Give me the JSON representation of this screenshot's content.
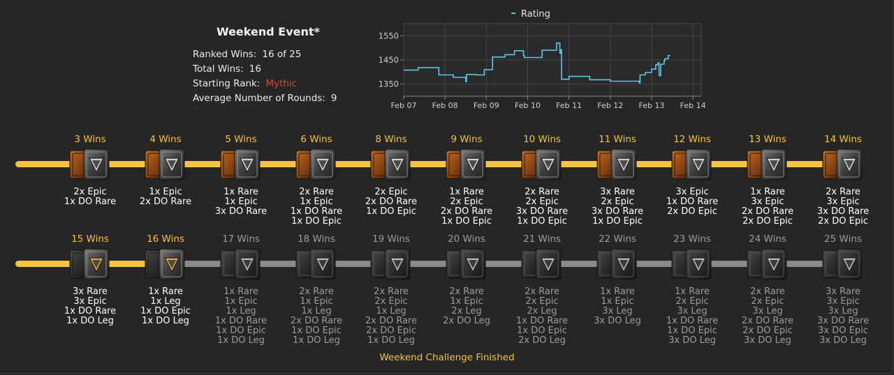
{
  "summary": {
    "title": "Weekend Event*",
    "ranked_wins_label": "Ranked Wins:",
    "ranked_wins_value": "16 of 25",
    "total_wins_label": "Total Wins:",
    "total_wins_value": "16",
    "starting_rank_label": "Starting Rank:",
    "starting_rank_value": "Mythic",
    "avg_rounds_label": "Average Number of Rounds:",
    "avg_rounds_value": "9"
  },
  "colors": {
    "background": "#262626",
    "gold": "#f5c242",
    "track_done": "#f5c242",
    "track_todo": "#8a8a8a",
    "rank_mythic": "#d0483a",
    "chart_line": "#5bc8e6"
  },
  "chart_data": {
    "type": "line",
    "title": "",
    "legend": "Rating",
    "legend_position": "top-center",
    "xlabel": "",
    "ylabel": "",
    "x_ticks": [
      "Feb 07",
      "Feb 08",
      "Feb 09",
      "Feb 10",
      "Feb 11",
      "Feb 12",
      "Feb 13",
      "Feb 14"
    ],
    "y_ticks": [
      1350,
      1450,
      1550
    ],
    "xlim": [
      0,
      7.2
    ],
    "ylim": [
      1300,
      1600
    ],
    "grid": true,
    "series": [
      {
        "name": "Rating",
        "x": [
          0,
          0.35,
          0.35,
          0.85,
          0.85,
          1.2,
          1.2,
          1.5,
          1.5,
          1.52,
          1.52,
          1.75,
          1.75,
          1.95,
          1.95,
          2.15,
          2.15,
          2.45,
          2.45,
          2.68,
          2.68,
          2.9,
          2.9,
          2.92,
          2.92,
          3.35,
          3.35,
          3.7,
          3.7,
          3.78,
          3.78,
          3.8,
          3.8,
          3.82,
          3.82,
          4.0,
          4.0,
          4.5,
          4.5,
          5.0,
          5.0,
          5.7,
          5.7,
          5.72,
          5.72,
          5.85,
          5.85,
          6.0,
          6.0,
          6.1,
          6.1,
          6.15,
          6.15,
          6.18,
          6.18,
          6.22,
          6.22,
          6.3,
          6.3,
          6.32,
          6.32,
          6.4,
          6.4,
          6.45
        ],
        "values": [
          1408,
          1408,
          1418,
          1418,
          1388,
          1388,
          1378,
          1378,
          1360,
          1360,
          1390,
          1390,
          1388,
          1388,
          1410,
          1410,
          1462,
          1462,
          1472,
          1472,
          1488,
          1488,
          1468,
          1468,
          1460,
          1460,
          1490,
          1490,
          1520,
          1520,
          1478,
          1478,
          1492,
          1492,
          1370,
          1370,
          1382,
          1382,
          1368,
          1368,
          1362,
          1362,
          1355,
          1355,
          1388,
          1388,
          1398,
          1398,
          1412,
          1412,
          1430,
          1430,
          1438,
          1438,
          1385,
          1385,
          1432,
          1432,
          1446,
          1446,
          1455,
          1455,
          1468,
          1468
        ]
      }
    ]
  },
  "row1": [
    {
      "wins": "3 Wins",
      "rewards": [
        "2x Epic",
        "1x DO Rare"
      ]
    },
    {
      "wins": "4 Wins",
      "rewards": [
        "1x Epic",
        "2x DO Rare"
      ]
    },
    {
      "wins": "5 Wins",
      "rewards": [
        "1x Rare",
        "1x Epic",
        "3x DO Rare"
      ]
    },
    {
      "wins": "6 Wins",
      "rewards": [
        "2x Rare",
        "1x Epic",
        "1x DO Rare",
        "1x DO Epic"
      ]
    },
    {
      "wins": "8 Wins",
      "rewards": [
        "2x Epic",
        "2x DO Rare",
        "1x DO Epic"
      ]
    },
    {
      "wins": "9 Wins",
      "rewards": [
        "1x Rare",
        "2x Epic",
        "2x DO Rare",
        "1x DO Epic"
      ]
    },
    {
      "wins": "10 Wins",
      "rewards": [
        "2x Rare",
        "2x Epic",
        "3x DO Rare",
        "1x DO Epic"
      ]
    },
    {
      "wins": "11 Wins",
      "rewards": [
        "3x Rare",
        "2x Epic",
        "3x DO Rare",
        "1x DO Epic"
      ]
    },
    {
      "wins": "12 Wins",
      "rewards": [
        "3x Epic",
        "1x DO Rare",
        "2x DO Epic"
      ]
    },
    {
      "wins": "13 Wins",
      "rewards": [
        "1x Rare",
        "3x Epic",
        "2x DO Rare",
        "2x DO Epic"
      ]
    },
    {
      "wins": "14 Wins",
      "rewards": [
        "2x Rare",
        "3x Epic",
        "3x DO Rare",
        "2x DO Epic"
      ]
    }
  ],
  "row2": [
    {
      "wins": "15 Wins",
      "rewards": [
        "3x Rare",
        "3x Epic",
        "1x DO Rare",
        "1x DO Leg"
      ],
      "done": true
    },
    {
      "wins": "16 Wins",
      "rewards": [
        "1x Rare",
        "1x Leg",
        "1x DO Epic",
        "1x DO Leg"
      ],
      "done": true
    },
    {
      "wins": "17 Wins",
      "rewards": [
        "1x Rare",
        "1x Epic",
        "1x Leg",
        "1x DO Rare",
        "1x DO Epic",
        "1x DO Leg"
      ],
      "done": false
    },
    {
      "wins": "18 Wins",
      "rewards": [
        "2x Rare",
        "1x Epic",
        "1x Leg",
        "2x DO Rare",
        "1x DO Epic",
        "1x DO Leg"
      ],
      "done": false
    },
    {
      "wins": "19 Wins",
      "rewards": [
        "2x Rare",
        "2x Epic",
        "1x Leg",
        "2x DO Rare",
        "2x DO Epic",
        "1x DO Leg"
      ],
      "done": false
    },
    {
      "wins": "20 Wins",
      "rewards": [
        "2x Rare",
        "1x Epic",
        "2x Leg",
        "2x DO Leg"
      ],
      "done": false
    },
    {
      "wins": "21 Wins",
      "rewards": [
        "2x Rare",
        "2x Epic",
        "2x Leg",
        "1x DO Rare",
        "1x DO Epic",
        "2x DO Leg"
      ],
      "done": false
    },
    {
      "wins": "22 Wins",
      "rewards": [
        "1x Rare",
        "1x Epic",
        "3x Leg",
        "3x DO Leg"
      ],
      "done": false
    },
    {
      "wins": "23 Wins",
      "rewards": [
        "1x Rare",
        "2x Epic",
        "3x Leg",
        "1x DO Rare",
        "1x DO Epic",
        "3x DO Leg"
      ],
      "done": false
    },
    {
      "wins": "24 Wins",
      "rewards": [
        "2x Rare",
        "2x Epic",
        "3x Leg",
        "2x DO Rare",
        "2x DO Epic",
        "3x DO Leg"
      ],
      "done": false
    },
    {
      "wins": "25 Wins",
      "rewards": [
        "3x Rare",
        "3x Epic",
        "3x Leg",
        "3x DO Rare",
        "3x DO Epic",
        "3x DO Leg"
      ],
      "done": false
    }
  ],
  "footer": "Weekend Challenge Finished"
}
